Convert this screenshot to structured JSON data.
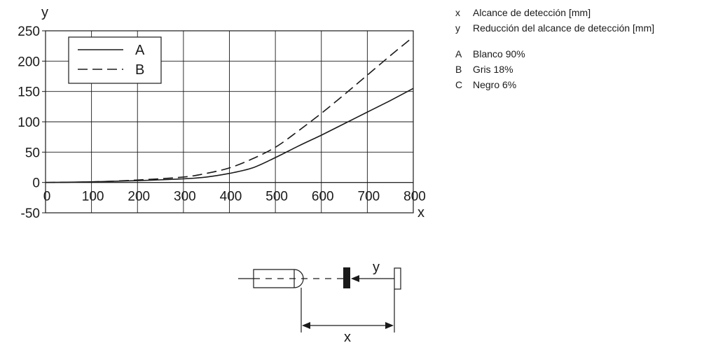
{
  "chart_data": {
    "type": "line",
    "xlabel": "x",
    "ylabel": "y",
    "xlim": [
      0,
      800
    ],
    "ylim": [
      -50,
      250
    ],
    "x_ticks": [
      0,
      100,
      200,
      300,
      400,
      500,
      600,
      700,
      800
    ],
    "y_ticks": [
      250,
      200,
      150,
      100,
      50,
      0,
      -50
    ],
    "grid": true,
    "legend_position": "top-left",
    "series": [
      {
        "name": "A",
        "style": "solid",
        "color": "#1a1a1a",
        "x": [
          0,
          100,
          200,
          300,
          350,
          400,
          450,
          500,
          550,
          600,
          650,
          700,
          750,
          800
        ],
        "y": [
          0,
          1,
          3,
          6,
          9,
          15,
          24,
          41,
          60,
          78,
          97,
          116,
          135,
          155
        ]
      },
      {
        "name": "B",
        "style": "dashed",
        "color": "#1a1a1a",
        "x": [
          0,
          100,
          200,
          300,
          350,
          400,
          450,
          500,
          550,
          600,
          650,
          700,
          750,
          800
        ],
        "y": [
          0,
          1,
          4,
          9,
          15,
          24,
          39,
          58,
          85,
          114,
          145,
          177,
          209,
          240
        ]
      }
    ]
  },
  "diagram": {
    "label_y": "y",
    "label_x": "x"
  },
  "key": {
    "items": [
      {
        "sym": "x",
        "text": "Alcance de detección [mm]"
      },
      {
        "sym": "y",
        "text": "Reducción del alcance de detección [mm]"
      },
      {
        "sym": "A",
        "text": "Blanco 90%"
      },
      {
        "sym": "B",
        "text": "Gris 18%"
      },
      {
        "sym": "C",
        "text": "Negro 6%"
      }
    ]
  }
}
